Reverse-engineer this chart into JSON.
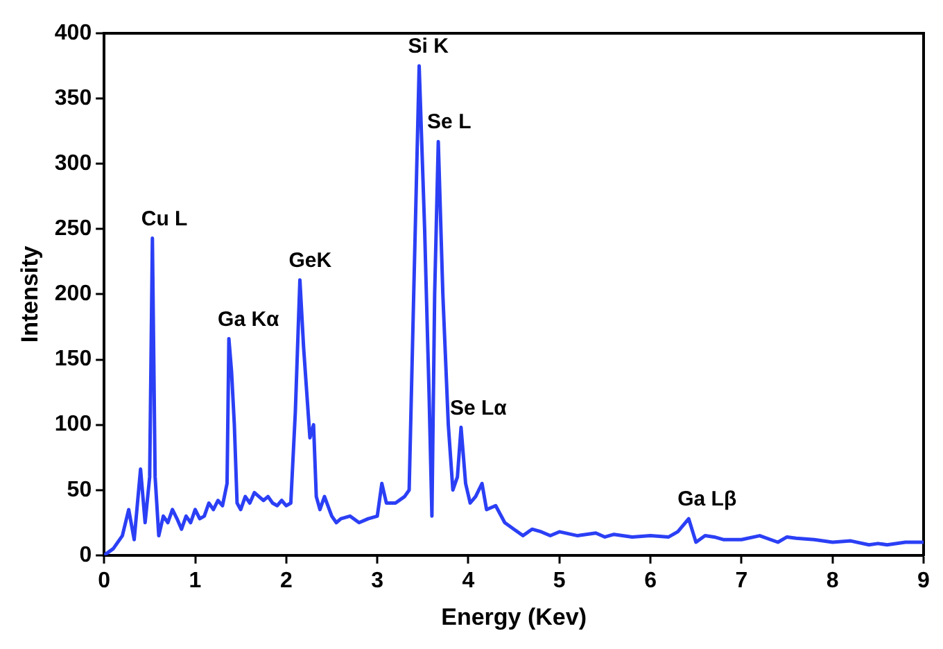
{
  "chart_data": {
    "type": "line",
    "xlabel": "Energy (Kev)",
    "ylabel": "Intensity",
    "xlim": [
      0,
      9
    ],
    "xticks": [
      0,
      1,
      2,
      3,
      4,
      5,
      6,
      7,
      8,
      9
    ],
    "ylim": [
      0,
      400
    ],
    "yticks": [
      0,
      50,
      100,
      150,
      200,
      250,
      300,
      350,
      400
    ],
    "grid": false,
    "legend": false,
    "marker": "none",
    "line_style": "solid",
    "series": [
      {
        "color": "#2b3ff5",
        "x": [
          0,
          0.1,
          0.2,
          0.27,
          0.33,
          0.4,
          0.45,
          0.5,
          0.53,
          0.56,
          0.6,
          0.65,
          0.7,
          0.75,
          0.8,
          0.85,
          0.9,
          0.95,
          1.0,
          1.05,
          1.1,
          1.15,
          1.2,
          1.25,
          1.3,
          1.35,
          1.37,
          1.4,
          1.43,
          1.46,
          1.5,
          1.55,
          1.6,
          1.65,
          1.7,
          1.75,
          1.8,
          1.85,
          1.9,
          1.95,
          2.0,
          2.05,
          2.1,
          2.15,
          2.19,
          2.22,
          2.26,
          2.3,
          2.33,
          2.37,
          2.42,
          2.5,
          2.55,
          2.6,
          2.7,
          2.8,
          2.9,
          3.0,
          3.05,
          3.1,
          3.2,
          3.3,
          3.35,
          3.4,
          3.46,
          3.52,
          3.57,
          3.6,
          3.63,
          3.67,
          3.72,
          3.78,
          3.83,
          3.88,
          3.92,
          3.97,
          4.02,
          4.08,
          4.15,
          4.2,
          4.3,
          4.4,
          4.5,
          4.6,
          4.7,
          4.8,
          4.9,
          5.0,
          5.2,
          5.4,
          5.5,
          5.6,
          5.8,
          6.0,
          6.2,
          6.3,
          6.42,
          6.5,
          6.6,
          6.7,
          6.8,
          7.0,
          7.2,
          7.4,
          7.5,
          7.6,
          7.8,
          8.0,
          8.2,
          8.4,
          8.5,
          8.6,
          8.8,
          9.0
        ],
        "values": [
          0,
          5,
          15,
          35,
          12,
          66,
          25,
          60,
          243,
          60,
          15,
          30,
          25,
          35,
          28,
          20,
          30,
          25,
          35,
          28,
          30,
          40,
          35,
          42,
          38,
          55,
          166,
          140,
          100,
          40,
          35,
          45,
          40,
          48,
          45,
          42,
          45,
          40,
          38,
          42,
          38,
          40,
          110,
          211,
          160,
          130,
          90,
          100,
          45,
          35,
          45,
          30,
          25,
          28,
          30,
          25,
          28,
          30,
          55,
          40,
          40,
          45,
          50,
          200,
          375,
          250,
          120,
          30,
          200,
          317,
          200,
          100,
          50,
          60,
          98,
          55,
          40,
          45,
          55,
          35,
          38,
          25,
          20,
          15,
          20,
          18,
          15,
          18,
          15,
          17,
          14,
          16,
          14,
          15,
          14,
          18,
          28,
          10,
          15,
          14,
          12,
          12,
          15,
          10,
          14,
          13,
          12,
          10,
          11,
          8,
          9,
          8,
          10,
          10
        ]
      }
    ],
    "annotations": [
      {
        "text": "Cu L",
        "x": 0.53,
        "y": 243
      },
      {
        "text": "Ga Kα",
        "x": 1.37,
        "y": 166
      },
      {
        "text": "GeK",
        "x": 2.15,
        "y": 211
      },
      {
        "text": "Si K",
        "x": 3.46,
        "y": 375
      },
      {
        "text": "Se L",
        "x": 3.67,
        "y": 317
      },
      {
        "text": "Se Lα",
        "x": 3.92,
        "y": 98
      },
      {
        "text": "Ga Lβ",
        "x": 6.42,
        "y": 28
      }
    ]
  }
}
